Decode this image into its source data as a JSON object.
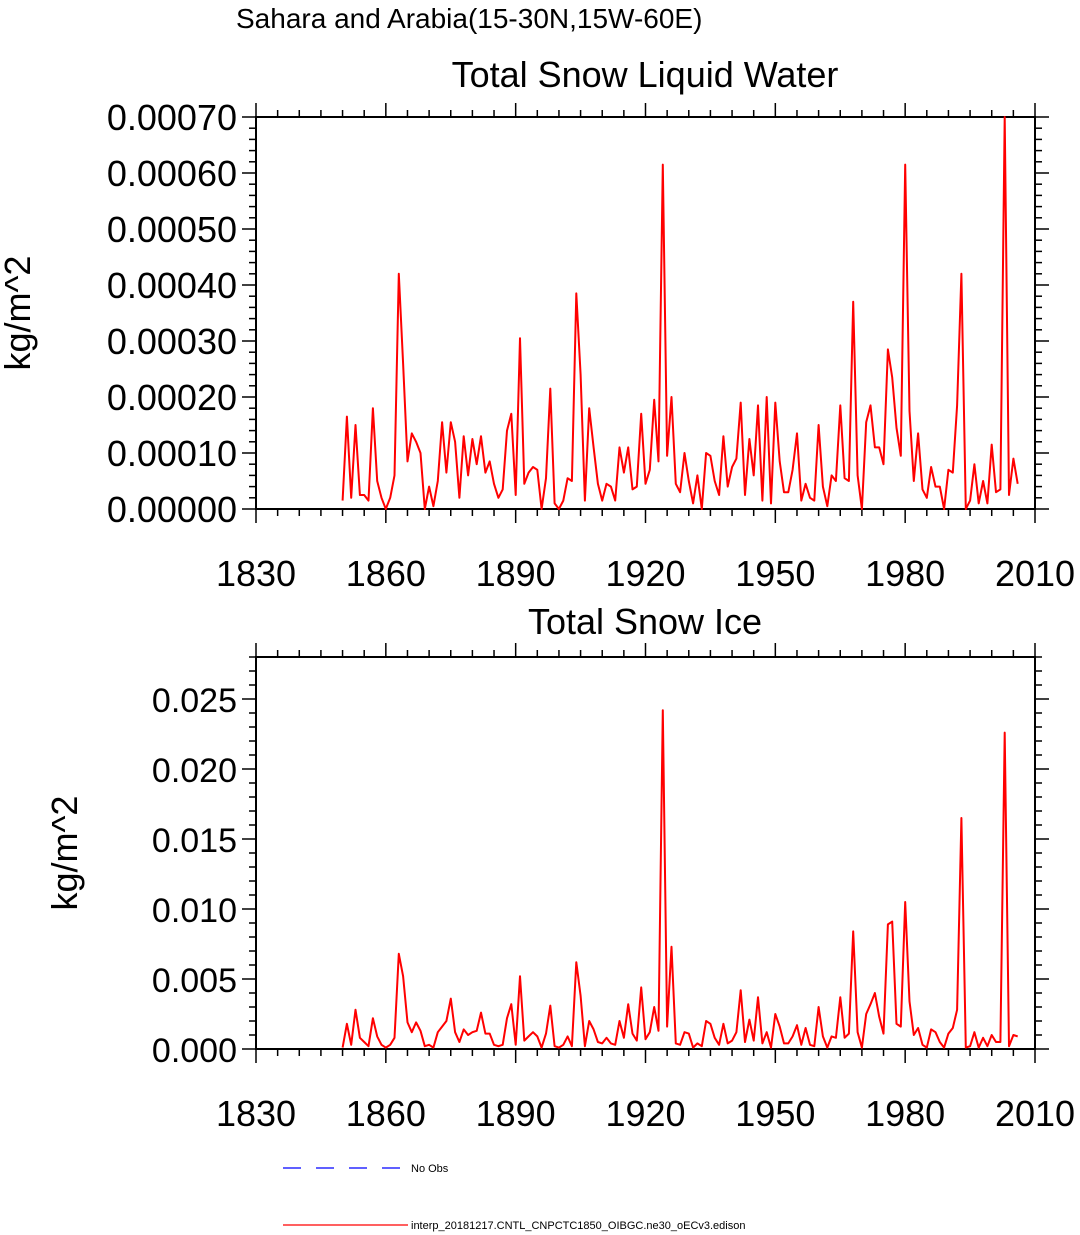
{
  "figure": {
    "title": "Sahara and Arabia(15-30N,15W-60E)"
  },
  "chart_data": [
    {
      "type": "line",
      "title": "Total Snow Liquid Water",
      "xlabel": "",
      "ylabel": "kg/m^2",
      "xlim": [
        1830,
        2010
      ],
      "ylim": [
        0,
        0.0007
      ],
      "xticks": [
        "1830",
        "1860",
        "1890",
        "1920",
        "1950",
        "1980",
        "2010"
      ],
      "yticks": [
        "0.00000",
        "0.00010",
        "0.00020",
        "0.00030",
        "0.00040",
        "0.00050",
        "0.00060",
        "0.00070"
      ],
      "x_start": 1850,
      "series": [
        {
          "name": "interp_20181217.CNTL_CNPCTC1850_OIBGC.ne30_oECv3.edison",
          "color": "#ff0000",
          "values": [
            1.5e-05,
            0.000165,
            2e-05,
            0.00015,
            2.5e-05,
            2.5e-05,
            1.5e-05,
            0.00018,
            5e-05,
            2e-05,
            0.0,
            2e-05,
            6e-05,
            0.00042,
            0.00026,
            8.5e-05,
            0.000135,
            0.00012,
            0.0001,
            0.0,
            4e-05,
            5e-06,
            5e-05,
            0.000155,
            6.5e-05,
            0.000155,
            0.00012,
            2e-05,
            0.00013,
            6e-05,
            0.000125,
            8e-05,
            0.00013,
            6.5e-05,
            8.5e-05,
            4.5e-05,
            2e-05,
            3.5e-05,
            0.00014,
            0.00017,
            2.5e-05,
            0.000305,
            4.5e-05,
            6.5e-05,
            7.5e-05,
            7e-05,
            0.0,
            5.5e-05,
            0.000215,
            1e-05,
            0.0,
            1.5e-05,
            5.5e-05,
            5e-05,
            0.000385,
            0.00024,
            1.5e-05,
            0.00018,
            0.00011,
            4.5e-05,
            1.5e-05,
            4.5e-05,
            4e-05,
            1.5e-05,
            0.00011,
            6.5e-05,
            0.00011,
            3.5e-05,
            4e-05,
            0.00017,
            4.5e-05,
            7e-05,
            0.000195,
            8.5e-05,
            0.000615,
            9.5e-05,
            0.0002,
            4.5e-05,
            3e-05,
            0.0001,
            5e-05,
            1e-05,
            6e-05,
            0.0,
            0.0001,
            9.5e-05,
            5e-05,
            2.5e-05,
            0.00013,
            4e-05,
            7.5e-05,
            9e-05,
            0.00019,
            2.5e-05,
            0.000125,
            6e-05,
            0.000185,
            1.5e-05,
            0.0002,
            1e-05,
            0.00019,
            8.5e-05,
            3e-05,
            3e-05,
            7e-05,
            0.000135,
            1.5e-05,
            4.5e-05,
            2e-05,
            1.5e-05,
            0.00015,
            4e-05,
            5e-06,
            6e-05,
            5e-05,
            0.000185,
            5.5e-05,
            5e-05,
            0.00037,
            6e-05,
            0.0,
            0.000155,
            0.000185,
            0.00011,
            0.00011,
            8e-05,
            0.000285,
            0.000235,
            0.000145,
            9.5e-05,
            0.000615,
            0.000175,
            5e-05,
            0.000135,
            3.5e-05,
            2e-05,
            7.5e-05,
            4e-05,
            4e-05,
            0.0,
            7e-05,
            6.5e-05,
            0.000185,
            0.00042,
            0.0,
            1.5e-05,
            8e-05,
            1e-05,
            5e-05,
            1e-05,
            0.000115,
            3e-05,
            3.5e-05,
            0.0007,
            2.5e-05,
            9e-05,
            4.5e-05
          ]
        }
      ]
    },
    {
      "type": "line",
      "title": "Total Snow Ice",
      "xlabel": "",
      "ylabel": "kg/m^2",
      "xlim": [
        1830,
        2010
      ],
      "ylim": [
        0,
        0.028
      ],
      "xticks": [
        "1830",
        "1860",
        "1890",
        "1920",
        "1950",
        "1980",
        "2010"
      ],
      "yticks": [
        "0.000",
        "0.005",
        "0.010",
        "0.015",
        "0.020",
        "0.025"
      ],
      "x_start": 1850,
      "series": [
        {
          "name": "interp_20181217.CNTL_CNPCTC1850_OIBGC.ne30_oECv3.edison",
          "color": "#ff0000",
          "values": [
            0.0001,
            0.0018,
            0.0003,
            0.0028,
            0.0008,
            0.0005,
            0.0002,
            0.0022,
            0.0009,
            0.0003,
            0.0001,
            0.0003,
            0.0008,
            0.0068,
            0.0052,
            0.0019,
            0.0012,
            0.0019,
            0.0013,
            0.0002,
            0.0003,
            0.0001,
            0.0012,
            0.0016,
            0.002,
            0.0036,
            0.0012,
            0.0005,
            0.0014,
            0.001,
            0.0012,
            0.0013,
            0.0026,
            0.0011,
            0.0011,
            0.0003,
            0.0002,
            0.0003,
            0.0022,
            0.0032,
            0.0003,
            0.0052,
            0.0006,
            0.0009,
            0.0012,
            0.0009,
            0.0001,
            0.0011,
            0.0031,
            0.0002,
            0.0001,
            0.0003,
            0.0009,
            0.0002,
            0.0062,
            0.0038,
            0.0002,
            0.002,
            0.0014,
            0.0005,
            0.0004,
            0.0008,
            0.0004,
            0.0003,
            0.002,
            0.0008,
            0.0032,
            0.0011,
            0.0006,
            0.0044,
            0.0007,
            0.0012,
            0.003,
            0.0013,
            0.0242,
            0.0016,
            0.0073,
            0.0004,
            0.0003,
            0.0012,
            0.0011,
            0.0001,
            0.0004,
            0.0002,
            0.002,
            0.0018,
            0.0008,
            0.0003,
            0.0018,
            0.0004,
            0.0006,
            0.0012,
            0.0042,
            0.0005,
            0.0021,
            0.0006,
            0.0037,
            0.0004,
            0.0012,
            0.0001,
            0.0025,
            0.0016,
            0.0004,
            0.0004,
            0.0009,
            0.0017,
            0.0003,
            0.0015,
            0.0003,
            0.0002,
            0.003,
            0.0009,
            0.0001,
            0.0009,
            0.0008,
            0.0037,
            0.0008,
            0.0011,
            0.0084,
            0.0012,
            0.0001,
            0.0025,
            0.0032,
            0.004,
            0.0023,
            0.0011,
            0.0089,
            0.0091,
            0.0018,
            0.0016,
            0.0105,
            0.0034,
            0.001,
            0.0015,
            0.0003,
            0.0001,
            0.0014,
            0.0012,
            0.0005,
            0.0001,
            0.0011,
            0.0015,
            0.0028,
            0.0165,
            0.0001,
            0.0002,
            0.0012,
            0.0001,
            0.0008,
            0.0002,
            0.001,
            0.0005,
            0.0005,
            0.0226,
            0.0002,
            0.001,
            0.0009
          ]
        }
      ]
    }
  ],
  "legend": {
    "items": [
      {
        "label": "No Obs",
        "color": "#0000ff",
        "style": "dashed"
      },
      {
        "label": "interp_20181217.CNTL_CNPCTC1850_OIBGC.ne30_oECv3.edison",
        "color": "#ff0000",
        "style": "solid"
      }
    ]
  }
}
